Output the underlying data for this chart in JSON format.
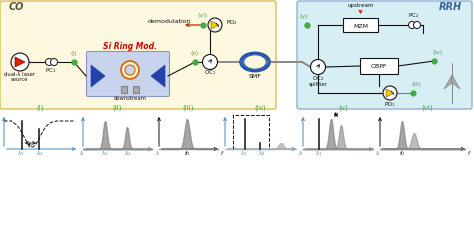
{
  "bg_co": "#FFF8E0",
  "bg_rrh": "#D8EEF5",
  "co_border": "#D4B840",
  "rrh_border": "#88AACC",
  "green": "#44AA44",
  "blue_axis": "#4488BB",
  "red": "#CC2200",
  "gray_peak": "#888888",
  "dark": "#111111",
  "orange": "#CC7700",
  "smf_blue": "#2255AA",
  "label_color": "#44AA44",
  "subplot_labels": [
    "(i)",
    "(ii)",
    "(iii)",
    "(iv)",
    "(v)",
    "(vi)"
  ]
}
